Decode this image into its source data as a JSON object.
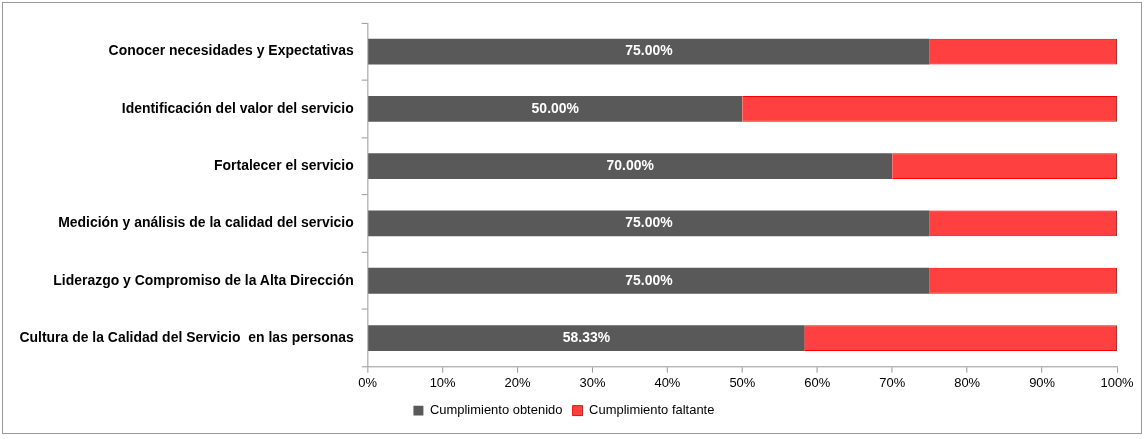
{
  "chart_data": {
    "type": "bar",
    "orientation": "horizontal",
    "stacked": true,
    "categories": [
      "Conocer necesidades y Expectativas",
      "Identificación del valor del servicio",
      "Fortalecer el servicio",
      "Medición y análisis de la calidad del servicio",
      "Liderazgo y Compromiso de la Alta Dirección",
      "Cultura de la Calidad del Servicio  en las personas"
    ],
    "series": [
      {
        "name": "Cumplimiento obtenido",
        "color": "#595959",
        "values": [
          75,
          50,
          70,
          75,
          75,
          58.33
        ],
        "value_labels": [
          "75.00%",
          "50.00%",
          "70.00%",
          "75.00%",
          "75.00%",
          "58.33%"
        ]
      },
      {
        "name": "Cumplimiento faltante",
        "color": "#ff0000",
        "values": [
          25,
          50,
          30,
          25,
          25,
          41.67
        ]
      }
    ],
    "xlim": [
      0,
      100
    ],
    "xticks": [
      {
        "value": 0,
        "label": "0%"
      },
      {
        "value": 10,
        "label": "10%"
      },
      {
        "value": 20,
        "label": "20%"
      },
      {
        "value": 30,
        "label": "30%"
      },
      {
        "value": 40,
        "label": "40%"
      },
      {
        "value": 50,
        "label": "50%"
      },
      {
        "value": 60,
        "label": "60%"
      },
      {
        "value": 70,
        "label": "70%"
      },
      {
        "value": 80,
        "label": "80%"
      },
      {
        "value": 90,
        "label": "90%"
      },
      {
        "value": 100,
        "label": "100%"
      }
    ],
    "grid": false,
    "legend": "bottom"
  }
}
